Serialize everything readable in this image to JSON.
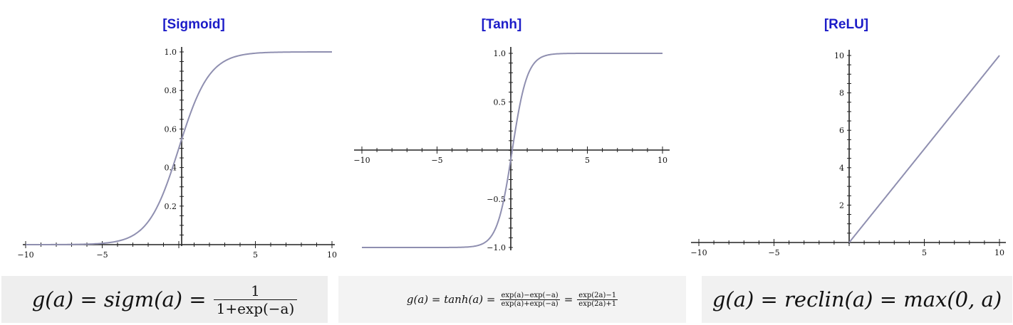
{
  "chart_data": [
    {
      "type": "line",
      "title": "[Sigmoid]",
      "function": "sigmoid",
      "xlim": [
        -10,
        10
      ],
      "ylim": [
        0,
        1
      ],
      "x_ticks": [
        -10,
        -5,
        5,
        10
      ],
      "x_tick_labels": [
        "−10",
        "−5",
        "5",
        "10"
      ],
      "y_ticks": [
        0.2,
        0.4,
        0.6,
        0.8,
        1.0
      ],
      "y_tick_labels": [
        "0.2",
        "0.4",
        "0.6",
        "0.8",
        "1.0"
      ],
      "x": [
        -10,
        -8,
        -6,
        -4,
        -3,
        -2,
        -1,
        0,
        1,
        2,
        3,
        4,
        6,
        8,
        10
      ],
      "y": [
        4.54e-05,
        0.000335,
        0.00247,
        0.018,
        0.0474,
        0.119,
        0.269,
        0.5,
        0.731,
        0.881,
        0.953,
        0.982,
        0.9975,
        0.99966,
        0.99995
      ],
      "line_color": "#8f8fb0",
      "equation": "g(a) = sigm(a) = 1 / (1+exp(−a))"
    },
    {
      "type": "line",
      "title": "[Tanh]",
      "function": "tanh",
      "xlim": [
        -10,
        10
      ],
      "ylim": [
        -1,
        1
      ],
      "x_ticks": [
        -10,
        -5,
        5,
        10
      ],
      "x_tick_labels": [
        "−10",
        "−5",
        "5",
        "10"
      ],
      "y_ticks": [
        -1.0,
        -0.5,
        0.5,
        1.0
      ],
      "y_tick_labels": [
        "−1.0",
        "−0.5",
        "0.5",
        "1.0"
      ],
      "x": [
        -10,
        -6,
        -4,
        -3,
        -2,
        -1,
        -0.5,
        0,
        0.5,
        1,
        2,
        3,
        4,
        6,
        10
      ],
      "y": [
        -1.0,
        -0.99999,
        -0.99933,
        -0.99505,
        -0.964,
        -0.7616,
        -0.4621,
        0,
        0.4621,
        0.7616,
        0.964,
        0.99505,
        0.99933,
        0.99999,
        1.0
      ],
      "line_color": "#8f8fb0",
      "equation": "g(a) = tanh(a) = (exp(a)−exp(−a)) / (exp(a)+exp(−a)) = (exp(2a)−1) / (exp(2a)+1)"
    },
    {
      "type": "line",
      "title": "[ReLU]",
      "function": "relu",
      "xlim": [
        -10,
        10
      ],
      "ylim": [
        0,
        10
      ],
      "x_ticks": [
        -10,
        -5,
        5,
        10
      ],
      "x_tick_labels": [
        "−10",
        "−5",
        "5",
        "10"
      ],
      "y_ticks": [
        2,
        4,
        6,
        8,
        10
      ],
      "y_tick_labels": [
        "2",
        "4",
        "6",
        "8",
        "10"
      ],
      "x": [
        0,
        10
      ],
      "y": [
        0,
        10
      ],
      "line_color": "#8f8fb0",
      "equation": "g(a) = reclin(a) = max(0, a)"
    }
  ],
  "equations": {
    "sigmoid": {
      "lhs": "g(a) = sigm(a) =",
      "num": "1",
      "den": "1+exp(−a)"
    },
    "tanh": {
      "lhs": "g(a) = tanh(a) =",
      "num1": "exp(a)−exp(−a)",
      "den1": "exp(a)+exp(−a)",
      "eq": "=",
      "num2": "exp(2a)−1",
      "den2": "exp(2a)+1"
    },
    "relu": {
      "text": "g(a) = reclin(a) = max(0, a)"
    }
  }
}
